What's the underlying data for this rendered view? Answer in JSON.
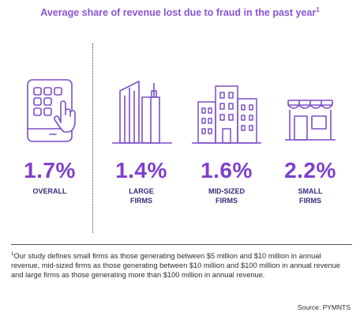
{
  "title": "Average share of revenue lost due to fraud in the past year",
  "title_marker": "1",
  "chart_data": {
    "type": "table",
    "categories": [
      "OVERALL",
      "LARGE FIRMS",
      "MID-SIZED FIRMS",
      "SMALL FIRMS"
    ],
    "values": [
      1.7,
      1.4,
      1.6,
      2.2
    ],
    "unit": "%"
  },
  "items": [
    {
      "value": "1.7%",
      "label_1": "OVERALL",
      "label_2": "",
      "icon": "tablet-tap-icon"
    },
    {
      "value": "1.4%",
      "label_1": "LARGE",
      "label_2": "FIRMS",
      "icon": "skyscrapers-icon"
    },
    {
      "value": "1.6%",
      "label_1": "MID-SIZED",
      "label_2": "FIRMS",
      "icon": "office-buildings-icon"
    },
    {
      "value": "2.2%",
      "label_1": "SMALL",
      "label_2": "FIRMS",
      "icon": "storefront-icon"
    }
  ],
  "footnote_marker": "1",
  "footnote_text": "Our study defines small firms as those generating between $5 million and $10 million in annual revenue, mid-sized firms as those generating between $10 million and $100 million in annual revenue and large firms as those generating more than $100 million in annual revenue.",
  "source": "Source: PYMNTS",
  "colors": {
    "accent": "#7f3fcc",
    "label": "#3d2a7a",
    "icon_stroke": "#7b4fc9"
  }
}
